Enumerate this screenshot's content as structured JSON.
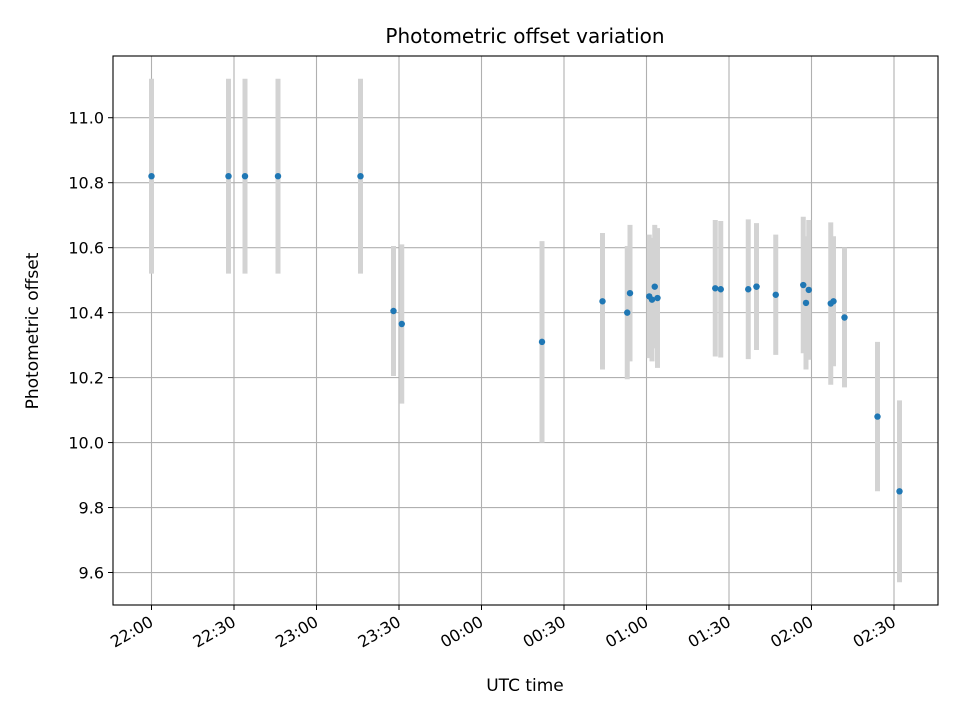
{
  "chart_data": {
    "type": "scatter",
    "title": "Photometric offset variation",
    "xlabel": "UTC time",
    "ylabel": "Photometric offset",
    "xlim": [
      "21:46",
      "02:46"
    ],
    "ylim": [
      9.5,
      11.19
    ],
    "x_ticks": [
      "22:00",
      "22:30",
      "23:00",
      "23:30",
      "00:00",
      "00:30",
      "01:00",
      "01:30",
      "02:00",
      "02:30"
    ],
    "y_ticks": [
      "9.6",
      "9.8",
      "10.0",
      "10.2",
      "10.4",
      "10.6",
      "10.8",
      "11.0"
    ],
    "grid": true,
    "colors": {
      "marker": "#1f77b4",
      "errorbar": "#d3d3d3",
      "grid": "#b0b0b0"
    },
    "series": [
      {
        "points": [
          {
            "t": "22:00",
            "y": 10.82,
            "err": 0.3
          },
          {
            "t": "22:28",
            "y": 10.82,
            "err": 0.3
          },
          {
            "t": "22:34",
            "y": 10.82,
            "err": 0.3
          },
          {
            "t": "22:46",
            "y": 10.82,
            "err": 0.3
          },
          {
            "t": "23:16",
            "y": 10.82,
            "err": 0.3
          },
          {
            "t": "23:28",
            "y": 10.405,
            "err": 0.2
          },
          {
            "t": "23:31",
            "y": 10.365,
            "err": 0.245
          },
          {
            "t": "00:22",
            "y": 10.31,
            "err": 0.31
          },
          {
            "t": "00:44",
            "y": 10.435,
            "err": 0.21
          },
          {
            "t": "00:53",
            "y": 10.4,
            "err": 0.205
          },
          {
            "t": "00:54",
            "y": 10.46,
            "err": 0.21
          },
          {
            "t": "01:01",
            "y": 10.45,
            "err": 0.19
          },
          {
            "t": "01:02",
            "y": 10.44,
            "err": 0.19
          },
          {
            "t": "01:03",
            "y": 10.48,
            "err": 0.19
          },
          {
            "t": "01:04",
            "y": 10.445,
            "err": 0.215
          },
          {
            "t": "01:25",
            "y": 10.475,
            "err": 0.21
          },
          {
            "t": "01:27",
            "y": 10.472,
            "err": 0.21
          },
          {
            "t": "01:37",
            "y": 10.472,
            "err": 0.215
          },
          {
            "t": "01:40",
            "y": 10.48,
            "err": 0.195
          },
          {
            "t": "01:40",
            "y": 10.48,
            "err": 0.195
          },
          {
            "t": "01:47",
            "y": 10.455,
            "err": 0.185
          },
          {
            "t": "01:57",
            "y": 10.485,
            "err": 0.21
          },
          {
            "t": "01:58",
            "y": 10.43,
            "err": 0.205
          },
          {
            "t": "01:59",
            "y": 10.47,
            "err": 0.215
          },
          {
            "t": "02:07",
            "y": 10.428,
            "err": 0.25
          },
          {
            "t": "02:08",
            "y": 10.435,
            "err": 0.2
          },
          {
            "t": "02:12",
            "y": 10.385,
            "err": 0.215
          },
          {
            "t": "02:24",
            "y": 10.08,
            "err": 0.23
          },
          {
            "t": "02:32",
            "y": 9.85,
            "err": 0.28
          }
        ]
      }
    ]
  }
}
